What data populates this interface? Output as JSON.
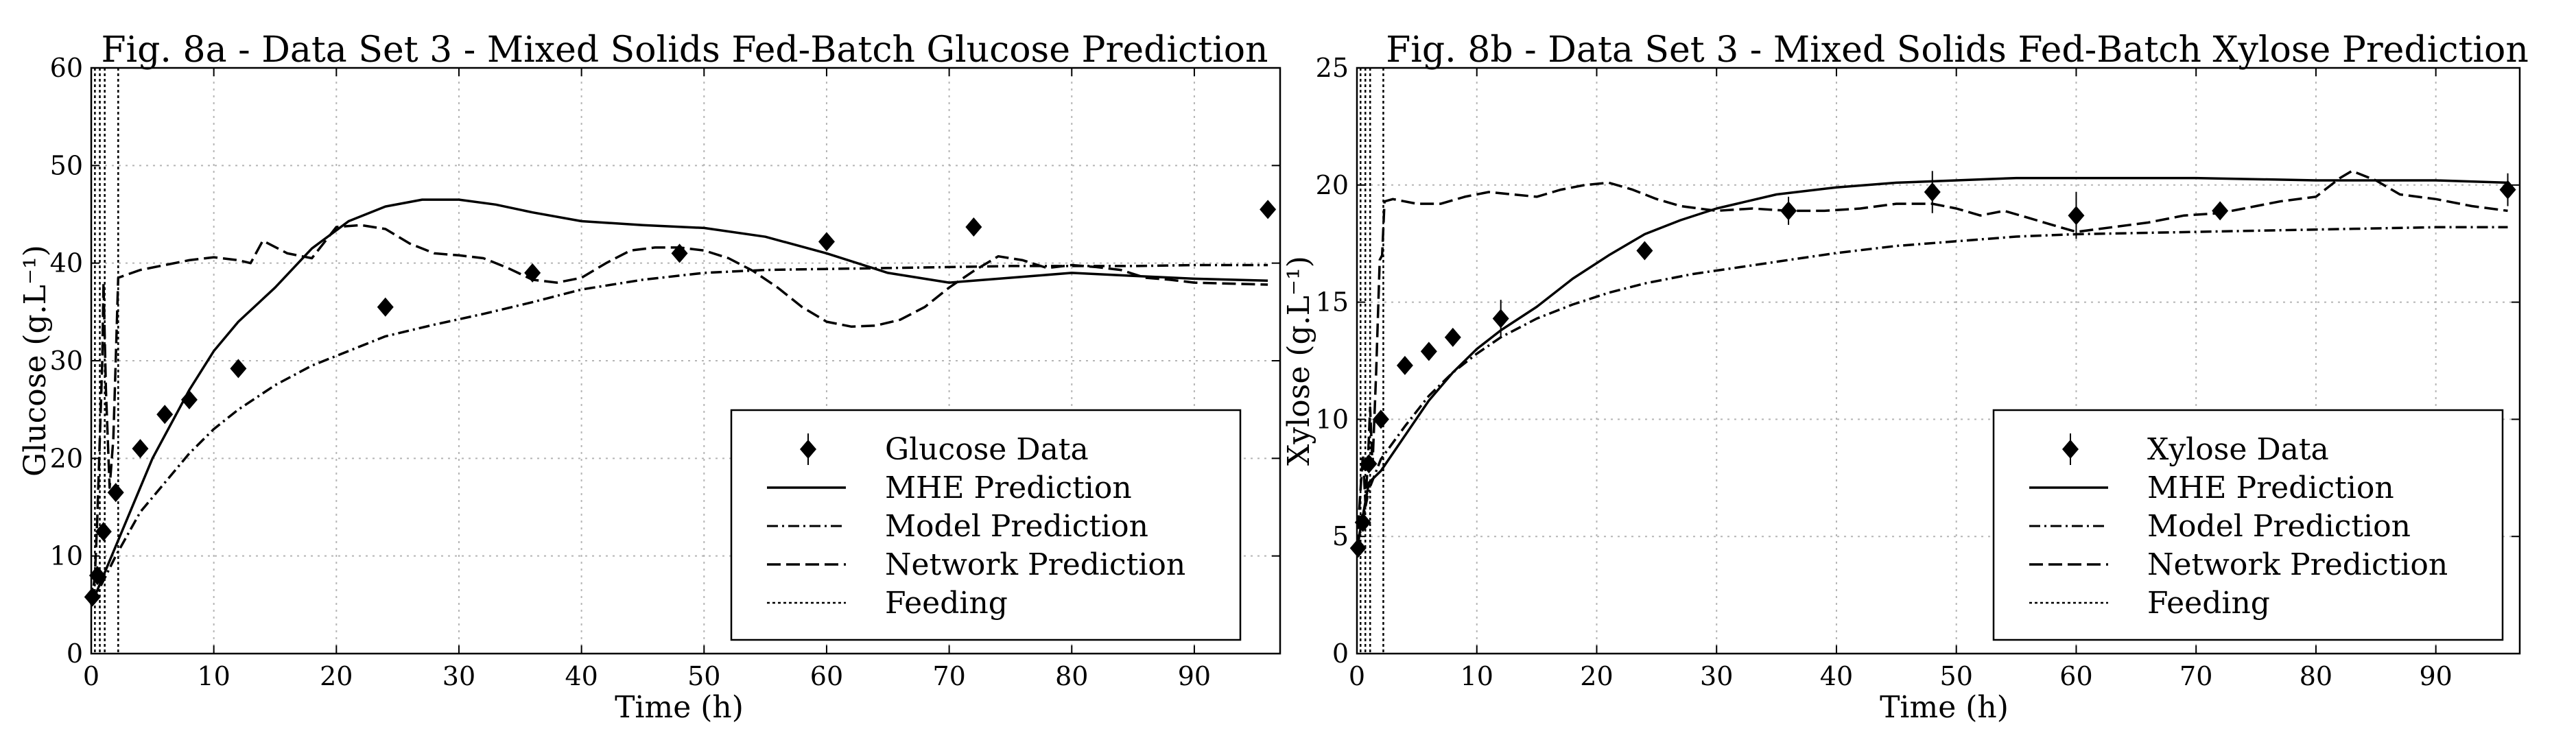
{
  "chart_data": [
    {
      "type": "line",
      "title": "Fig. 8a - Data Set 3 - Mixed Solids Fed-Batch Glucose Prediction",
      "xlabel": "Time (h)",
      "ylabel": "Glucose (g.L⁻¹)",
      "xlim": [
        0,
        97
      ],
      "ylim": [
        0,
        60
      ],
      "xticks": [
        0,
        10,
        20,
        30,
        40,
        50,
        60,
        70,
        80,
        90
      ],
      "yticks": [
        0,
        10,
        20,
        30,
        40,
        50,
        60
      ],
      "grid": true,
      "legend_position": "lower-right",
      "legend": {
        "data": "Glucose Data",
        "mhe": "MHE Prediction",
        "model": "Model Prediction",
        "network": "Network Prediction",
        "feeding": "Feeding"
      },
      "series": [
        {
          "name": "Glucose Data",
          "kind": "markers",
          "points": [
            [
              0.1,
              5.8,
              0
            ],
            [
              0.5,
              8,
              0
            ],
            [
              1,
              12.5,
              0
            ],
            [
              2,
              16.5,
              0
            ],
            [
              4,
              21,
              0
            ],
            [
              6,
              24.5,
              0
            ],
            [
              8,
              26,
              0
            ],
            [
              12,
              29.2,
              0
            ],
            [
              24,
              35.5,
              0
            ],
            [
              36,
              39,
              0.7
            ],
            [
              48,
              41,
              0.6
            ],
            [
              60,
              42.2,
              0.5
            ],
            [
              72,
              43.7,
              0.6
            ],
            [
              96,
              45.5,
              0.5
            ]
          ]
        },
        {
          "name": "MHE Prediction",
          "kind": "solid",
          "points": [
            [
              0,
              5
            ],
            [
              1,
              8
            ],
            [
              2,
              11
            ],
            [
              3,
              14
            ],
            [
              5,
              20
            ],
            [
              8,
              27
            ],
            [
              10,
              31
            ],
            [
              12,
              34
            ],
            [
              15,
              37.5
            ],
            [
              18,
              41.5
            ],
            [
              21,
              44.3
            ],
            [
              24,
              45.8
            ],
            [
              27,
              46.5
            ],
            [
              30,
              46.5
            ],
            [
              33,
              46
            ],
            [
              36,
              45.2
            ],
            [
              40,
              44.3
            ],
            [
              45,
              43.9
            ],
            [
              50,
              43.6
            ],
            [
              55,
              42.7
            ],
            [
              60,
              41
            ],
            [
              65,
              39
            ],
            [
              70,
              38
            ],
            [
              75,
              38.5
            ],
            [
              80,
              39
            ],
            [
              85,
              38.7
            ],
            [
              90,
              38.4
            ],
            [
              96,
              38.2
            ]
          ]
        },
        {
          "name": "Model Prediction",
          "kind": "dashdot",
          "points": [
            [
              0,
              5
            ],
            [
              1,
              7.5
            ],
            [
              2,
              10
            ],
            [
              4,
              14.5
            ],
            [
              6,
              17.5
            ],
            [
              8,
              20.5
            ],
            [
              10,
              23
            ],
            [
              12,
              25
            ],
            [
              15,
              27.5
            ],
            [
              18,
              29.5
            ],
            [
              20,
              30.5
            ],
            [
              24,
              32.5
            ],
            [
              28,
              33.7
            ],
            [
              32,
              34.8
            ],
            [
              36,
              36
            ],
            [
              40,
              37.3
            ],
            [
              45,
              38.3
            ],
            [
              50,
              39
            ],
            [
              55,
              39.3
            ],
            [
              60,
              39.4
            ],
            [
              65,
              39.5
            ],
            [
              70,
              39.6
            ],
            [
              75,
              39.7
            ],
            [
              80,
              39.7
            ],
            [
              85,
              39.7
            ],
            [
              90,
              39.8
            ],
            [
              96,
              39.8
            ]
          ]
        },
        {
          "name": "Network Prediction",
          "kind": "dashed",
          "points": [
            [
              0,
              5
            ],
            [
              0.3,
              8
            ],
            [
              0.5,
              14
            ],
            [
              0.7,
              22
            ],
            [
              0.9,
              30
            ],
            [
              1,
              38
            ],
            [
              1.2,
              27
            ],
            [
              1.5,
              17
            ],
            [
              1.8,
              22
            ],
            [
              2,
              30
            ],
            [
              2.2,
              38.5
            ],
            [
              4,
              39.3
            ],
            [
              6,
              39.8
            ],
            [
              8,
              40.3
            ],
            [
              10,
              40.6
            ],
            [
              12,
              40.3
            ],
            [
              13,
              40
            ],
            [
              14,
              42.3
            ],
            [
              16,
              41
            ],
            [
              18,
              40.5
            ],
            [
              20,
              43.7
            ],
            [
              22,
              43.9
            ],
            [
              24,
              43.5
            ],
            [
              26,
              42
            ],
            [
              28,
              41
            ],
            [
              30,
              40.8
            ],
            [
              32,
              40.5
            ],
            [
              34,
              39.5
            ],
            [
              36,
              38.3
            ],
            [
              38,
              38
            ],
            [
              40,
              38.5
            ],
            [
              42,
              40
            ],
            [
              44,
              41.3
            ],
            [
              46,
              41.6
            ],
            [
              48,
              41.6
            ],
            [
              50,
              41.3
            ],
            [
              52,
              40.5
            ],
            [
              54,
              39.2
            ],
            [
              56,
              37.5
            ],
            [
              58,
              35.5
            ],
            [
              60,
              34
            ],
            [
              62,
              33.5
            ],
            [
              64,
              33.6
            ],
            [
              66,
              34.2
            ],
            [
              68,
              35.5
            ],
            [
              70,
              37.5
            ],
            [
              72,
              39.2
            ],
            [
              74,
              40.7
            ],
            [
              76,
              40.3
            ],
            [
              78,
              39.5
            ],
            [
              80,
              39.8
            ],
            [
              82,
              39.6
            ],
            [
              84,
              39.3
            ],
            [
              86,
              38.5
            ],
            [
              88,
              38.3
            ],
            [
              90,
              38
            ],
            [
              96,
              37.8
            ]
          ]
        }
      ],
      "feeding_times": [
        0.3,
        0.7,
        1.1,
        2.2
      ]
    },
    {
      "type": "line",
      "title": "Fig. 8b - Data Set 3 - Mixed Solids Fed-Batch Xylose Prediction",
      "xlabel": "Time (h)",
      "ylabel": "Xylose (g.L⁻¹)",
      "xlim": [
        0,
        97
      ],
      "ylim": [
        0,
        25
      ],
      "xticks": [
        0,
        10,
        20,
        30,
        40,
        50,
        60,
        70,
        80,
        90
      ],
      "yticks": [
        0,
        5,
        10,
        15,
        20,
        25
      ],
      "grid": true,
      "legend_position": "lower-right",
      "legend": {
        "data": "Xylose Data",
        "mhe": "MHE Prediction",
        "model": "Model Prediction",
        "network": "Network Prediction",
        "feeding": "Feeding"
      },
      "series": [
        {
          "name": "Xylose Data",
          "kind": "markers",
          "points": [
            [
              0.1,
              4.5,
              0.3
            ],
            [
              0.5,
              5.6,
              0.3
            ],
            [
              1,
              8.1,
              0.3
            ],
            [
              2,
              10,
              0.3
            ],
            [
              4,
              12.3,
              0.2
            ],
            [
              6,
              12.9,
              0.2
            ],
            [
              8,
              13.5,
              0.2
            ],
            [
              12,
              14.3,
              0.8
            ],
            [
              24,
              17.2,
              0.3
            ],
            [
              36,
              18.9,
              0.6
            ],
            [
              48,
              19.7,
              0.9
            ],
            [
              60,
              18.7,
              1
            ],
            [
              72,
              18.9,
              0.3
            ],
            [
              96,
              19.8,
              0.7
            ]
          ]
        },
        {
          "name": "MHE Prediction",
          "kind": "solid",
          "points": [
            [
              0,
              4.5
            ],
            [
              1,
              7.3
            ],
            [
              2,
              7.8
            ],
            [
              4,
              9.3
            ],
            [
              6,
              10.8
            ],
            [
              8,
              12
            ],
            [
              10,
              13
            ],
            [
              12,
              13.8
            ],
            [
              15,
              14.8
            ],
            [
              18,
              16
            ],
            [
              21,
              17
            ],
            [
              24,
              17.9
            ],
            [
              27,
              18.5
            ],
            [
              30,
              19
            ],
            [
              35,
              19.6
            ],
            [
              40,
              19.9
            ],
            [
              45,
              20.1
            ],
            [
              50,
              20.2
            ],
            [
              55,
              20.3
            ],
            [
              60,
              20.3
            ],
            [
              70,
              20.3
            ],
            [
              80,
              20.2
            ],
            [
              90,
              20.2
            ],
            [
              96,
              20.1
            ]
          ]
        },
        {
          "name": "Model Prediction",
          "kind": "dashdot",
          "points": [
            [
              0,
              4.5
            ],
            [
              1,
              7
            ],
            [
              2,
              8.3
            ],
            [
              4,
              9.7
            ],
            [
              6,
              11
            ],
            [
              8,
              12
            ],
            [
              10,
              12.8
            ],
            [
              12,
              13.5
            ],
            [
              15,
              14.3
            ],
            [
              18,
              14.9
            ],
            [
              21,
              15.4
            ],
            [
              24,
              15.8
            ],
            [
              28,
              16.2
            ],
            [
              32,
              16.5
            ],
            [
              36,
              16.8
            ],
            [
              40,
              17.1
            ],
            [
              45,
              17.4
            ],
            [
              50,
              17.6
            ],
            [
              55,
              17.8
            ],
            [
              60,
              17.9
            ],
            [
              70,
              18
            ],
            [
              80,
              18.1
            ],
            [
              90,
              18.2
            ],
            [
              96,
              18.2
            ]
          ]
        },
        {
          "name": "Network Prediction",
          "kind": "dashed",
          "points": [
            [
              0,
              4.5
            ],
            [
              0.3,
              7
            ],
            [
              0.5,
              8.5
            ],
            [
              0.7,
              6.5
            ],
            [
              0.9,
              8
            ],
            [
              1.1,
              10.5
            ],
            [
              1.3,
              8
            ],
            [
              1.6,
              12
            ],
            [
              1.9,
              16.8
            ],
            [
              2.1,
              17
            ],
            [
              2.3,
              19.3
            ],
            [
              3,
              19.4
            ],
            [
              5,
              19.2
            ],
            [
              7,
              19.2
            ],
            [
              9,
              19.5
            ],
            [
              11,
              19.7
            ],
            [
              13,
              19.6
            ],
            [
              15,
              19.5
            ],
            [
              17,
              19.8
            ],
            [
              19,
              20
            ],
            [
              21,
              20.1
            ],
            [
              23,
              19.8
            ],
            [
              25,
              19.4
            ],
            [
              27,
              19.1
            ],
            [
              30,
              18.9
            ],
            [
              33,
              19
            ],
            [
              36,
              18.9
            ],
            [
              39,
              18.9
            ],
            [
              42,
              19
            ],
            [
              45,
              19.2
            ],
            [
              48,
              19.2
            ],
            [
              50,
              19
            ],
            [
              52,
              18.7
            ],
            [
              54,
              18.9
            ],
            [
              56,
              18.6
            ],
            [
              58,
              18.3
            ],
            [
              60,
              18
            ],
            [
              63,
              18.2
            ],
            [
              66,
              18.4
            ],
            [
              69,
              18.7
            ],
            [
              72,
              18.8
            ],
            [
              75,
              19.1
            ],
            [
              77,
              19.3
            ],
            [
              80,
              19.5
            ],
            [
              82,
              20.3
            ],
            [
              83,
              20.6
            ],
            [
              85,
              20.2
            ],
            [
              87,
              19.6
            ],
            [
              90,
              19.4
            ],
            [
              93,
              19.1
            ],
            [
              96,
              18.9
            ]
          ]
        }
      ],
      "feeding_times": [
        0.3,
        0.7,
        1.1,
        2.2
      ]
    }
  ]
}
